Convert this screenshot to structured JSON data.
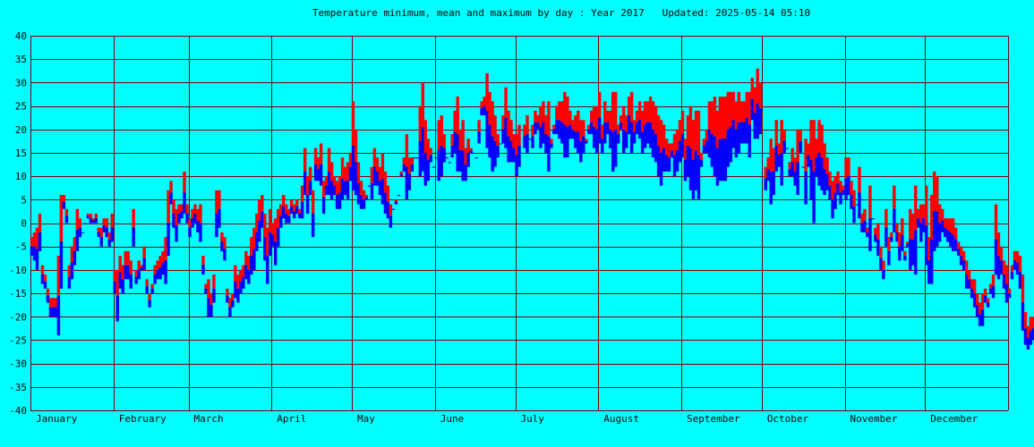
{
  "colors": {
    "background": "#00ffff",
    "grid": "#800000",
    "max_bar": "#ff0000",
    "min_bar": "#0000ff"
  },
  "chart_data": {
    "type": "bar",
    "title": "Temperature minimum, mean and maximum by day : Year 2017   Updated: 2025-05-14 05:10",
    "ylim": [
      -40,
      40
    ],
    "yticks": [
      "40",
      "35",
      "30",
      "25",
      "20",
      "15",
      "10",
      "5",
      "0",
      "-5",
      "-10",
      "-15",
      "-20",
      "-25",
      "-30",
      "-35",
      "-40"
    ],
    "months": [
      "January",
      "February",
      "March",
      "April",
      "May",
      "June",
      "July",
      "August",
      "September",
      "October",
      "November",
      "December"
    ],
    "month_days": [
      31,
      28,
      31,
      30,
      31,
      30,
      31,
      31,
      30,
      31,
      30,
      31
    ],
    "grid": true,
    "series": [
      {
        "color": "max",
        "values": [
          -3,
          -2,
          -1,
          2,
          -9,
          -11,
          -14,
          -16,
          -16,
          -16,
          -7,
          6,
          6,
          3,
          -9,
          -5,
          -3,
          3,
          1,
          -2,
          0,
          2,
          2,
          1,
          2,
          -1,
          -1,
          1,
          1,
          -2,
          2,
          -10,
          -10,
          -7,
          -9,
          -6,
          -6,
          -8,
          3,
          -10,
          -8,
          -9,
          -5,
          -12,
          -15,
          -13,
          -9,
          -8,
          -7,
          -6,
          -3,
          7,
          9,
          5,
          3,
          4,
          4,
          11,
          4,
          1,
          3,
          4,
          3,
          4,
          -7,
          -13,
          -12,
          -15,
          -11,
          7,
          7,
          -2,
          -3,
          -14,
          -16,
          -15,
          -9,
          -11,
          -10,
          -9,
          -6,
          -7,
          -3,
          -1,
          2,
          5,
          6,
          2,
          -1,
          3,
          0,
          1,
          3,
          4,
          6,
          4,
          3,
          5,
          4,
          5,
          3,
          8,
          16,
          10,
          12,
          7,
          16,
          14,
          17,
          9,
          10,
          16,
          13,
          10,
          9,
          10,
          14,
          12,
          13,
          15,
          26,
          20,
          13,
          9,
          7,
          6,
          8,
          12,
          16,
          14,
          12,
          15,
          11,
          8,
          4,
          3,
          5,
          6,
          11,
          14,
          19,
          14,
          14,
          14,
          14,
          25,
          30,
          22,
          18,
          16,
          12,
          14,
          22,
          23,
          19,
          14,
          13,
          19,
          24,
          27,
          20,
          22,
          16,
          18,
          16,
          15,
          14,
          22,
          26,
          27,
          32,
          28,
          26,
          23,
          19,
          17,
          23,
          29,
          24,
          22,
          19,
          19,
          21,
          15,
          21,
          23,
          18,
          21,
          24,
          23,
          25,
          26,
          23,
          26,
          18,
          21,
          25,
          26,
          26,
          28,
          27,
          24,
          22,
          23,
          24,
          22,
          22,
          18,
          21,
          24,
          25,
          25,
          28,
          21,
          26,
          24,
          24,
          28,
          28,
          21,
          23,
          25,
          23,
          27,
          28,
          22,
          24,
          26,
          24,
          26,
          26,
          27,
          26,
          25,
          23,
          22,
          21,
          18,
          17,
          17,
          19,
          20,
          22,
          24,
          18,
          23,
          25,
          22,
          24,
          24,
          15,
          18,
          20,
          26,
          26,
          27,
          24,
          27,
          27,
          27,
          28,
          28,
          28,
          26,
          28,
          26,
          26,
          28,
          28,
          31,
          29,
          33,
          30,
          15,
          12,
          14,
          18,
          16,
          22,
          17,
          22,
          20,
          16,
          13,
          16,
          14,
          20,
          20,
          12,
          18,
          17,
          22,
          22,
          18,
          22,
          21,
          17,
          14,
          11,
          9,
          10,
          11,
          9,
          8,
          14,
          14,
          9,
          7,
          4,
          12,
          2,
          3,
          -1,
          8,
          1,
          -1,
          0,
          -5,
          -8,
          3,
          -3,
          -2,
          8,
          0,
          -2,
          1,
          -6,
          -4,
          3,
          2,
          8,
          3,
          4,
          4,
          8,
          -3,
          6,
          11,
          10,
          4,
          3,
          1,
          1,
          1,
          1,
          -1,
          -4,
          -5,
          -6,
          -8,
          -10,
          -12,
          -12,
          -15,
          -17,
          -15,
          -14,
          -16,
          -13,
          -11,
          4,
          -2,
          -5,
          -8,
          -9,
          -14,
          -9,
          -6,
          -6,
          -7,
          -11,
          -19,
          -22,
          -20,
          -20,
          -18
        ]
      },
      {
        "color": "min",
        "values": [
          -7,
          -8,
          -10,
          -6,
          -13,
          -14,
          -17,
          -20,
          -20,
          -20,
          -24,
          -14,
          3,
          0,
          -14,
          -12,
          -9,
          -6,
          -3,
          0,
          1,
          1,
          0,
          0,
          0,
          -3,
          -5,
          -2,
          -3,
          -5,
          -4,
          -15,
          -21,
          -14,
          -15,
          -12,
          -12,
          -14,
          -5,
          -13,
          -12,
          -10,
          -10,
          -15,
          -18,
          -15,
          -13,
          -12,
          -12,
          -11,
          -13,
          -7,
          4,
          -1,
          -4,
          0,
          1,
          2,
          0,
          -3,
          -1,
          0,
          -2,
          -4,
          -11,
          -15,
          -20,
          -20,
          -17,
          -3,
          -1,
          -6,
          -8,
          -17,
          -20,
          -18,
          -16,
          -17,
          -15,
          -14,
          -12,
          -13,
          -11,
          -10,
          -6,
          -4,
          -1,
          -8,
          -13,
          -7,
          -5,
          -9,
          -5,
          -1,
          1,
          0,
          0,
          2,
          1,
          2,
          1,
          1,
          6,
          2,
          6,
          -3,
          9,
          9,
          8,
          2,
          6,
          6,
          5,
          6,
          3,
          3,
          5,
          6,
          5,
          9,
          7,
          6,
          4,
          3,
          3,
          5,
          8,
          5,
          8,
          8,
          6,
          4,
          2,
          1,
          -1,
          3,
          4,
          8,
          10,
          11,
          5,
          7,
          11,
          17,
          16,
          10,
          11,
          8,
          9,
          13,
          18,
          14,
          9,
          10,
          13,
          14,
          21,
          14,
          15,
          11,
          11,
          9,
          9,
          12,
          15,
          19,
          21,
          17,
          23,
          23,
          16,
          14,
          11,
          12,
          14,
          21,
          17,
          16,
          13,
          13,
          13,
          10,
          12,
          15,
          16,
          15,
          18,
          16,
          19,
          20,
          16,
          17,
          15,
          11,
          16,
          19,
          19,
          18,
          17,
          14,
          14,
          18,
          18,
          16,
          15,
          13,
          15,
          17,
          19,
          19,
          16,
          15,
          17,
          15,
          17,
          19,
          16,
          11,
          12,
          17,
          20,
          15,
          16,
          19,
          15,
          17,
          19,
          18,
          15,
          16,
          17,
          16,
          14,
          13,
          10,
          8,
          11,
          11,
          11,
          14,
          10,
          11,
          13,
          14,
          9,
          10,
          7,
          5,
          7,
          5,
          12,
          15,
          15,
          14,
          12,
          10,
          8,
          9,
          9,
          9,
          12,
          13,
          16,
          14,
          15,
          17,
          17,
          17,
          14,
          22,
          18,
          18,
          19,
          17,
          7,
          9,
          4,
          6,
          11,
          12,
          8,
          15,
          16,
          10,
          10,
          8,
          6,
          15,
          13,
          4,
          12,
          5,
          0,
          10,
          8,
          7,
          6,
          7,
          5,
          1,
          3,
          6,
          4,
          6,
          5,
          6,
          3,
          0,
          5,
          1,
          -2,
          -2,
          -3,
          -6,
          1,
          -4,
          -7,
          -10,
          -12,
          -5,
          -9,
          -4,
          -2,
          -4,
          -8,
          -6,
          -8,
          -5,
          -10,
          -9,
          -11,
          -1,
          -4,
          -2,
          -9,
          -13,
          -13,
          -6,
          -5,
          -4,
          -2,
          -3,
          -4,
          -5,
          -6,
          -6,
          -7,
          -9,
          -10,
          -14,
          -14,
          -16,
          -18,
          -20,
          -22,
          -22,
          -17,
          -18,
          -15,
          -16,
          -11,
          -12,
          -11,
          -14,
          -17,
          -16,
          -12,
          -10,
          -11,
          -14,
          -23,
          -26,
          -27,
          -26,
          -25
        ]
      }
    ]
  }
}
